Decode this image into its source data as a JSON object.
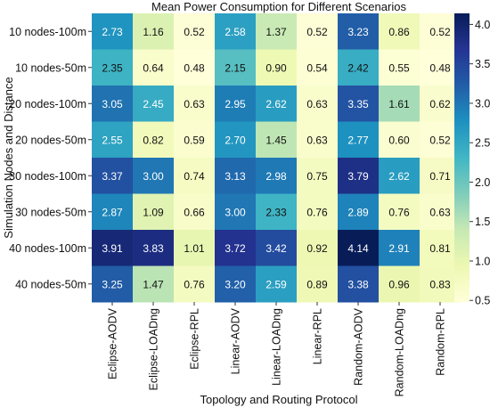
{
  "chart_data": {
    "type": "heatmap",
    "title": "Mean Power Consumption for Different Scenarios",
    "xlabel": "Topology and Routing Protocol",
    "ylabel": "Simulation Nodes and Distance",
    "columns": [
      "Eclipse-AODV",
      "Eclipse-LOADng",
      "Eclipse-RPL",
      "Linear-AODV",
      "Linear-LOADng",
      "Linear-RPL",
      "Random-AODV",
      "Random-LOADng",
      "Random-RPL"
    ],
    "rows": [
      "10 nodes-100m",
      "10 nodes-50m",
      "20 nodes-100m",
      "20 nodes-50m",
      "30 nodes-100m",
      "30 nodes-50m",
      "40 nodes-100m",
      "40 nodes-50m"
    ],
    "values": [
      [
        2.73,
        1.16,
        0.52,
        2.58,
        1.37,
        0.52,
        3.23,
        0.86,
        0.52
      ],
      [
        2.35,
        0.64,
        0.48,
        2.15,
        0.9,
        0.54,
        2.42,
        0.55,
        0.48
      ],
      [
        3.05,
        2.45,
        0.63,
        2.95,
        2.62,
        0.63,
        3.35,
        1.61,
        0.62
      ],
      [
        2.55,
        0.82,
        0.59,
        2.7,
        1.45,
        0.63,
        2.77,
        0.6,
        0.52
      ],
      [
        3.37,
        3.0,
        0.74,
        3.13,
        2.98,
        0.75,
        3.79,
        2.62,
        0.71
      ],
      [
        2.87,
        1.09,
        0.66,
        3.0,
        2.33,
        0.76,
        2.89,
        0.76,
        0.63
      ],
      [
        3.91,
        3.83,
        1.01,
        3.72,
        3.42,
        0.92,
        4.14,
        2.91,
        0.81
      ],
      [
        3.25,
        1.47,
        0.76,
        3.2,
        2.59,
        0.89,
        3.38,
        0.96,
        0.83
      ]
    ],
    "value_labels": [
      [
        "2.73",
        "1.16",
        "0.52",
        "2.58",
        "1.37",
        "0.52",
        "3.23",
        "0.86",
        "0.52"
      ],
      [
        "2.35",
        "0.64",
        "0.48",
        "2.15",
        "0.90",
        "0.54",
        "2.42",
        "0.55",
        "0.48"
      ],
      [
        "3.05",
        "2.45",
        "0.63",
        "2.95",
        "2.62",
        "0.63",
        "3.35",
        "1.61",
        "0.62"
      ],
      [
        "2.55",
        "0.82",
        "0.59",
        "2.70",
        "1.45",
        "0.63",
        "2.77",
        "0.60",
        "0.52"
      ],
      [
        "3.37",
        "3.00",
        "0.74",
        "3.13",
        "2.98",
        "0.75",
        "3.79",
        "2.62",
        "0.71"
      ],
      [
        "2.87",
        "1.09",
        "0.66",
        "3.00",
        "2.33",
        "0.76",
        "2.89",
        "0.76",
        "0.63"
      ],
      [
        "3.91",
        "3.83",
        "1.01",
        "3.72",
        "3.42",
        "0.92",
        "4.14",
        "2.91",
        "0.81"
      ],
      [
        "3.25",
        "1.47",
        "0.76",
        "3.20",
        "2.59",
        "0.89",
        "3.38",
        "0.96",
        "0.83"
      ]
    ],
    "colorbar": {
      "range": [
        0.48,
        4.14
      ],
      "ticks": [
        "0.5",
        "1.0",
        "1.5",
        "2.0",
        "2.5",
        "3.0",
        "3.5",
        "4.0"
      ],
      "tick_values": [
        0.5,
        1.0,
        1.5,
        2.0,
        2.5,
        3.0,
        3.5,
        4.0
      ],
      "colormap": "YlGnBu",
      "colormap_stops": [
        "#ffffd9",
        "#edf8b1",
        "#c7e9b4",
        "#7fcdbb",
        "#41b6c4",
        "#1d91c0",
        "#225ea8",
        "#253494",
        "#081d58"
      ]
    },
    "legend": "colorbar at right",
    "grid": false
  }
}
